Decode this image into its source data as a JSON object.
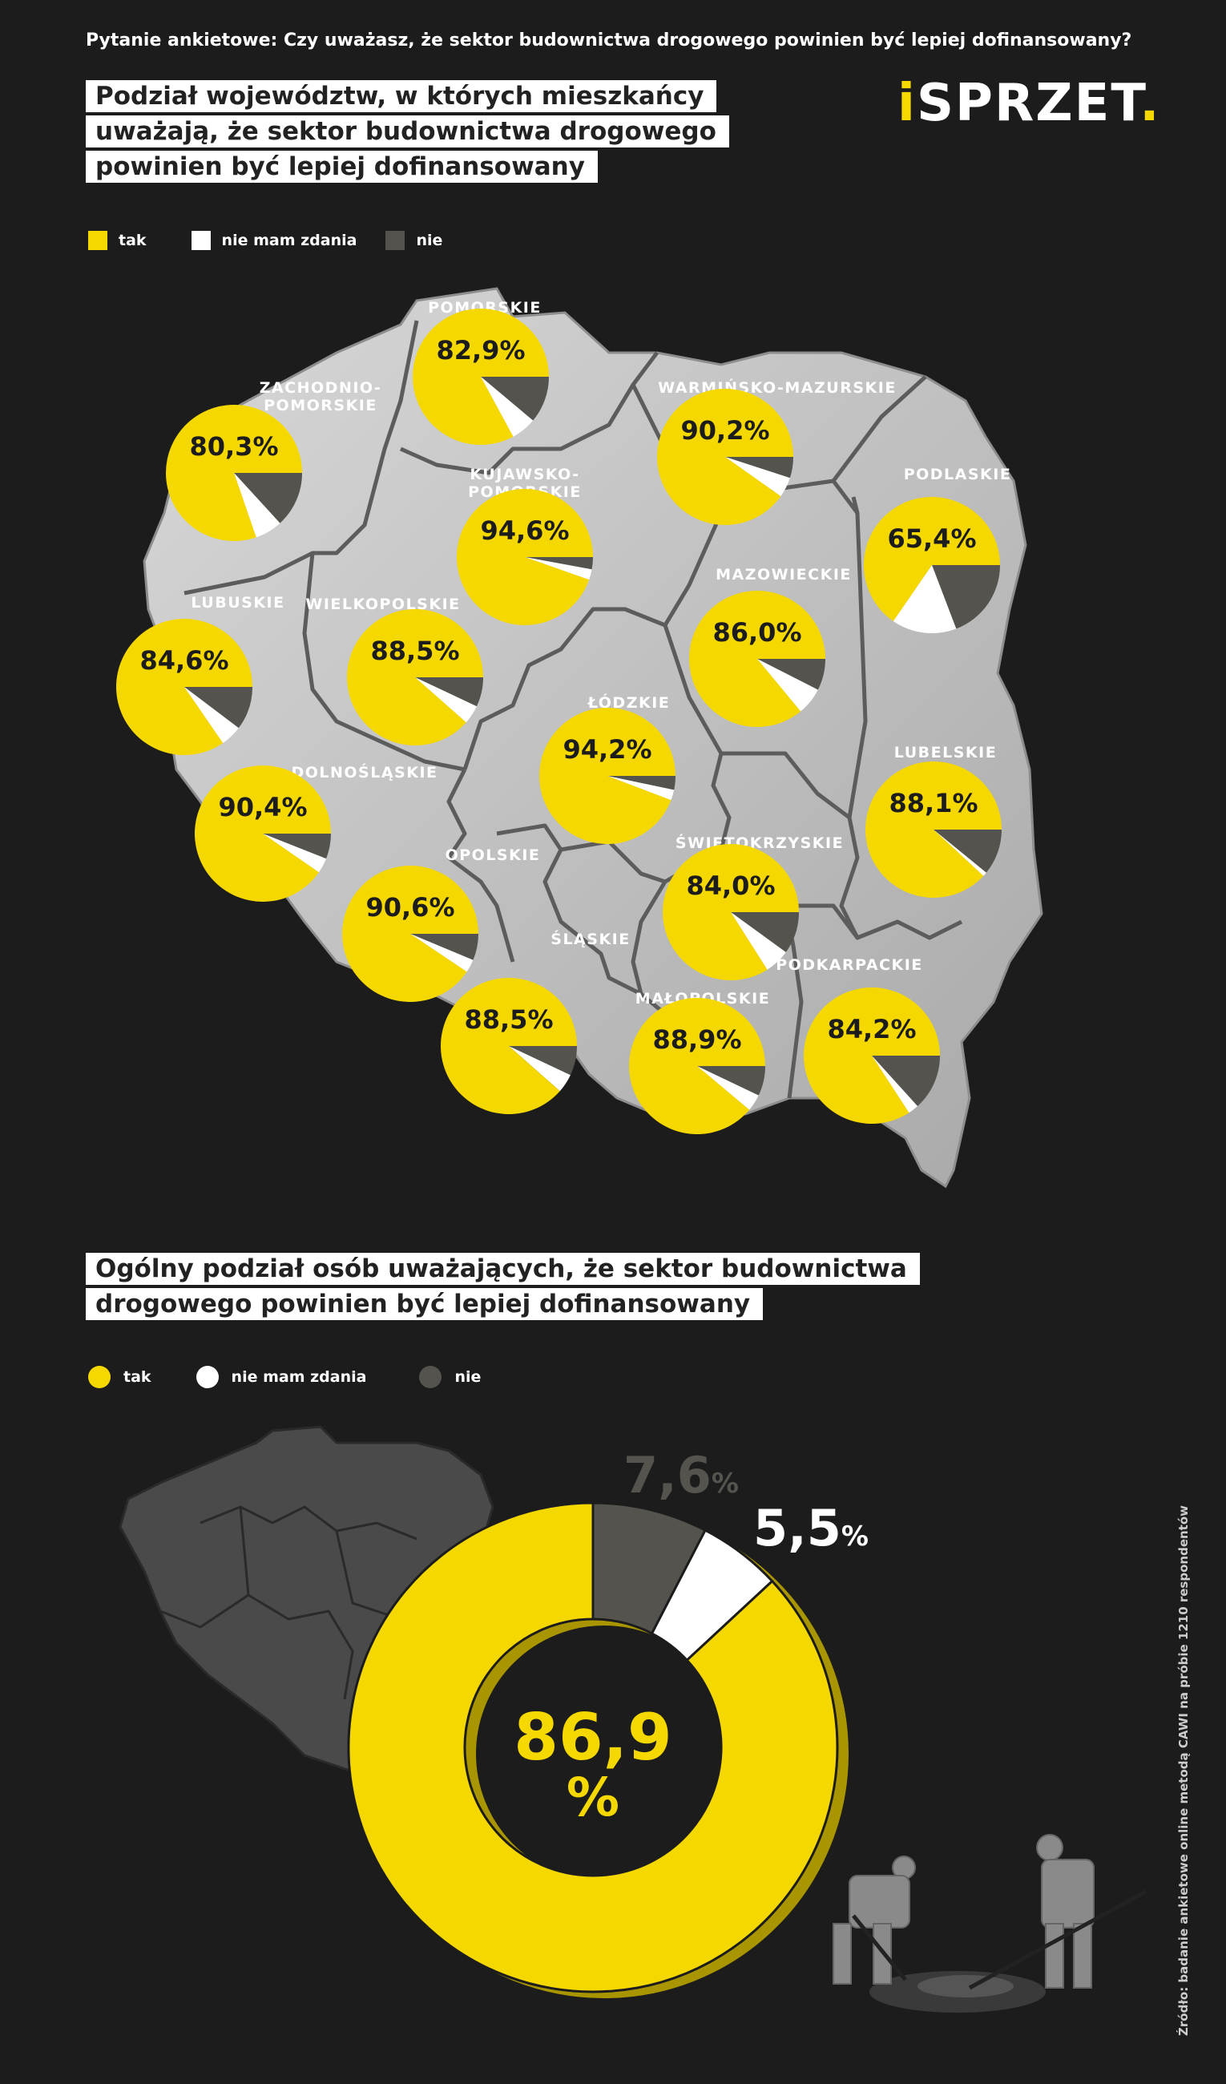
{
  "question": "Pytanie ankietowe: Czy uważasz, że sektor budownictwa drogowego powinien być lepiej dofinansowany?",
  "title1": [
    "Podział województw, w których mieszkańcy",
    "uważają, że sektor budownictwa drogowego",
    "powinien być lepiej dofinansowany"
  ],
  "logo": {
    "prefix": "i",
    "main": "SPRZET",
    "dot": "."
  },
  "legend": {
    "tak": "tak",
    "nie_mam_zdania": "nie mam zdania",
    "nie": "nie"
  },
  "colors": {
    "tak": "#f5d800",
    "nie_mam_zdania": "#ffffff",
    "nie": "#55534d",
    "background": "#1c1c1c",
    "map": "#c9c9c9"
  },
  "title2": [
    "Ogólny podział osób uważających, że sektor budownictwa",
    "drogowego powinien być lepiej dofinansowany"
  ],
  "source": "Źródło: badanie ankietowe online metodą CAWI na próbie 1210 respondentów",
  "chart_data": [
    {
      "type": "pie",
      "categories": [
        "tak",
        "nie mam zdania",
        "nie"
      ],
      "regions": [
        {
          "name": "POMORSKIE",
          "label": "82,9%",
          "values": [
            82.9,
            6.0,
            11.1
          ]
        },
        {
          "name": "ZACHODNIO-\nPOMORSKIE",
          "label": "80,3%",
          "values": [
            80.3,
            6.5,
            13.2
          ]
        },
        {
          "name": "WARMIŃSKO-MAZURSKIE",
          "label": "90,2%",
          "values": [
            90.2,
            4.8,
            5.0
          ]
        },
        {
          "name": "KUJAWSKO-\nPOMORSKIE",
          "label": "94,6%",
          "values": [
            94.6,
            2.5,
            2.9
          ]
        },
        {
          "name": "PODLASKIE",
          "label": "65,4%",
          "values": [
            65.4,
            15.4,
            19.2
          ]
        },
        {
          "name": "LUBUSKIE",
          "label": "84,6%",
          "values": [
            84.6,
            5.1,
            10.3
          ]
        },
        {
          "name": "WIELKOPOLSKIE",
          "label": "88,5%",
          "values": [
            88.5,
            4.5,
            7.0
          ]
        },
        {
          "name": "MAZOWIECKIE",
          "label": "86,0%",
          "values": [
            86.0,
            6.5,
            7.5
          ]
        },
        {
          "name": "ŁÓDZKIE",
          "label": "94,2%",
          "values": [
            94.2,
            2.5,
            3.3
          ]
        },
        {
          "name": "DOLNOŚLĄSKIE",
          "label": "90,4%",
          "values": [
            90.4,
            3.6,
            6.0
          ]
        },
        {
          "name": "LUBELSKIE",
          "label": "88,1%",
          "values": [
            88.1,
            1.0,
            10.9
          ]
        },
        {
          "name": "OPOLSKIE",
          "label": "90,6%",
          "values": [
            90.6,
            3.1,
            6.3
          ]
        },
        {
          "name": "ŚWIĘTOKRZYSKIE",
          "label": "84,0%",
          "values": [
            84.0,
            6.0,
            10.0
          ]
        },
        {
          "name": "ŚLĄSKIE",
          "label": "88,5%",
          "values": [
            88.5,
            4.5,
            7.0
          ]
        },
        {
          "name": "MAŁOPOLSKIE",
          "label": "88,9%",
          "values": [
            88.9,
            4.0,
            7.1
          ]
        },
        {
          "name": "PODKARPACKIE",
          "label": "84,2%",
          "values": [
            84.2,
            2.5,
            13.3
          ]
        }
      ]
    },
    {
      "type": "pie",
      "variant": "donut",
      "categories": [
        "tak",
        "nie mam zdania",
        "nie"
      ],
      "values": [
        86.9,
        5.5,
        7.6
      ],
      "labels": {
        "tak_num": "86,9",
        "tak_pct": "%",
        "nie_mam_zdania_num": "5,5",
        "nie_num": "7,6",
        "pct": "%"
      }
    }
  ]
}
